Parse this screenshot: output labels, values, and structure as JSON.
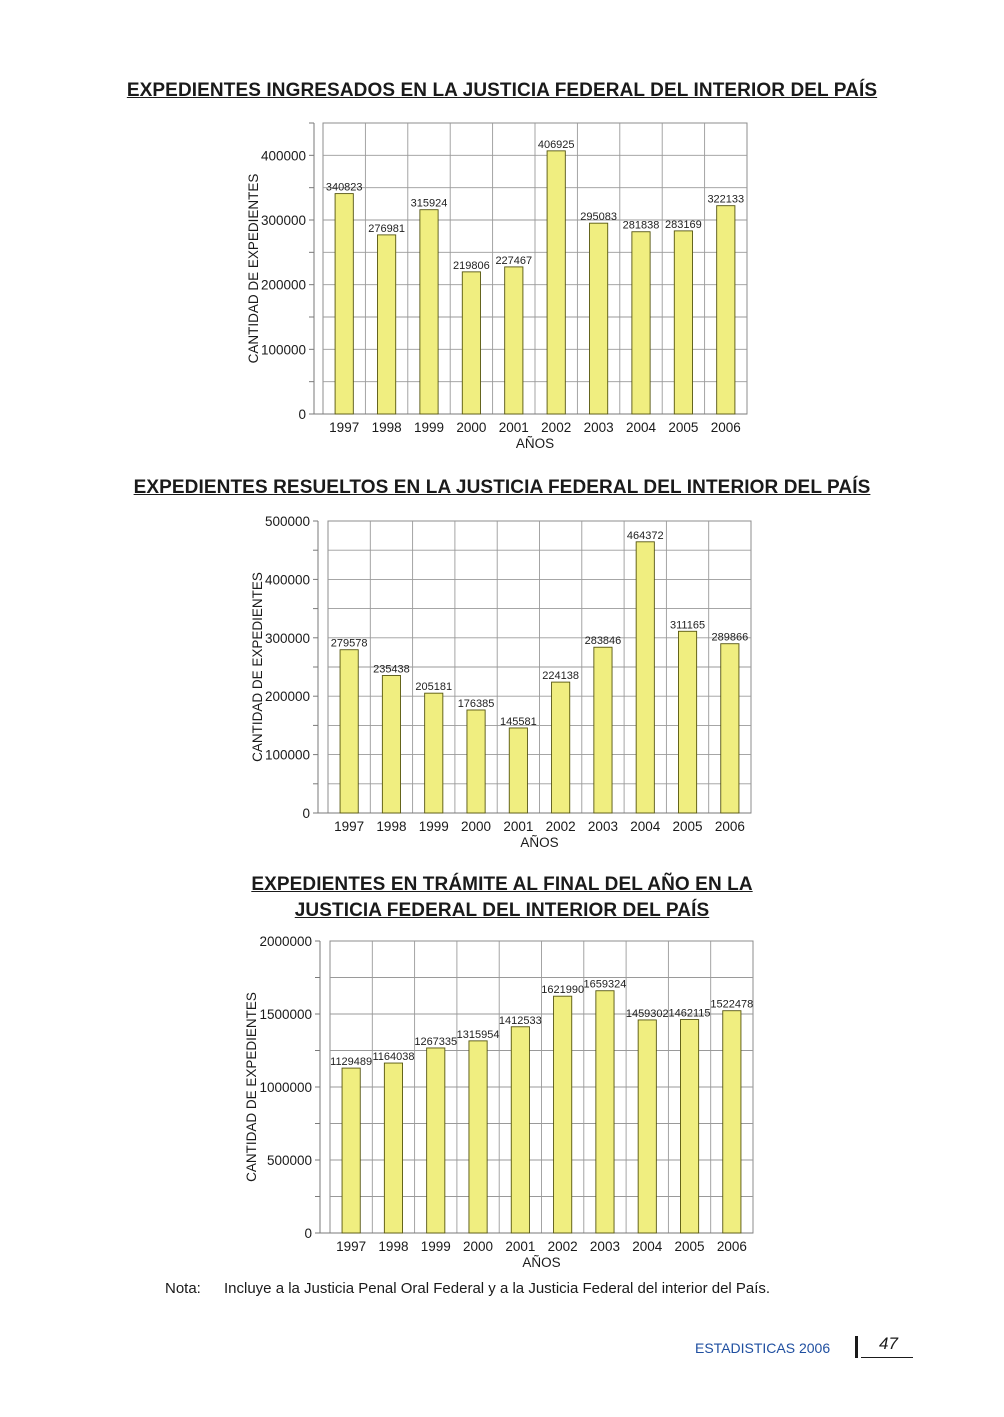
{
  "charts": [
    {
      "title": "EXPEDIENTES INGRESADOS EN LA JUSTICIA FEDERAL DEL INTERIOR DEL PAÍS"
    },
    {
      "title": "EXPEDIENTES RESUELTOS EN LA JUSTICIA FEDERAL DEL INTERIOR DEL PAÍS"
    },
    {
      "title_line1": "EXPEDIENTES EN TRÁMITE AL FINAL DEL AÑO EN LA",
      "title_line2": "JUSTICIA FEDERAL DEL INTERIOR DEL PAÍS"
    }
  ],
  "chart_data": [
    {
      "type": "bar",
      "title": "EXPEDIENTES INGRESADOS EN LA JUSTICIA FEDERAL DEL INTERIOR DEL PAÍS",
      "categories": [
        "1997",
        "1998",
        "1999",
        "2000",
        "2001",
        "2002",
        "2003",
        "2004",
        "2005",
        "2006"
      ],
      "values": [
        340823,
        276981,
        315924,
        219806,
        227467,
        406925,
        295083,
        281838,
        283169,
        322133
      ],
      "xlabel": "AÑOS",
      "ylabel": "CANTIDAD DE EXPEDIENTES",
      "ylim": [
        0,
        450000
      ],
      "yticks": [
        0,
        100000,
        200000,
        300000,
        400000
      ],
      "grid": true,
      "bar_color": "#f0ee80"
    },
    {
      "type": "bar",
      "title": "EXPEDIENTES RESUELTOS EN LA JUSTICIA FEDERAL DEL INTERIOR DEL PAÍS",
      "categories": [
        "1997",
        "1998",
        "1999",
        "2000",
        "2001",
        "2002",
        "2003",
        "2004",
        "2005",
        "2006"
      ],
      "values": [
        279578,
        235438,
        205181,
        176385,
        145581,
        224138,
        283846,
        464372,
        311165,
        289866
      ],
      "xlabel": "AÑOS",
      "ylabel": "CANTIDAD DE EXPEDIENTES",
      "ylim": [
        0,
        500000
      ],
      "yticks": [
        0,
        100000,
        200000,
        300000,
        400000,
        500000
      ],
      "grid": true,
      "bar_color": "#f0ee80"
    },
    {
      "type": "bar",
      "title": "EXPEDIENTES EN TRÁMITE AL FINAL DEL AÑO EN LA JUSTICIA FEDERAL DEL INTERIOR DEL PAÍS",
      "categories": [
        "1997",
        "1998",
        "1999",
        "2000",
        "2001",
        "2002",
        "2003",
        "2004",
        "2005",
        "2006"
      ],
      "values": [
        1129489,
        1164038,
        1267335,
        1315954,
        1412533,
        1621990,
        1659324,
        1459302,
        1462115,
        1522478
      ],
      "xlabel": "AÑOS",
      "ylabel": "CANTIDAD DE EXPEDIENTES",
      "ylim": [
        0,
        2000000
      ],
      "yticks": [
        0,
        500000,
        1000000,
        1500000,
        2000000
      ],
      "grid": true,
      "bar_color": "#f0ee80"
    }
  ],
  "note": {
    "label": "Nota:",
    "text": "Incluye a la Justicia Penal Oral Federal y a la Justicia Federal del interior del País."
  },
  "footer": {
    "section": "ESTADISTICAS 2006",
    "page": "47",
    "section_color": "#1f4fa0"
  }
}
